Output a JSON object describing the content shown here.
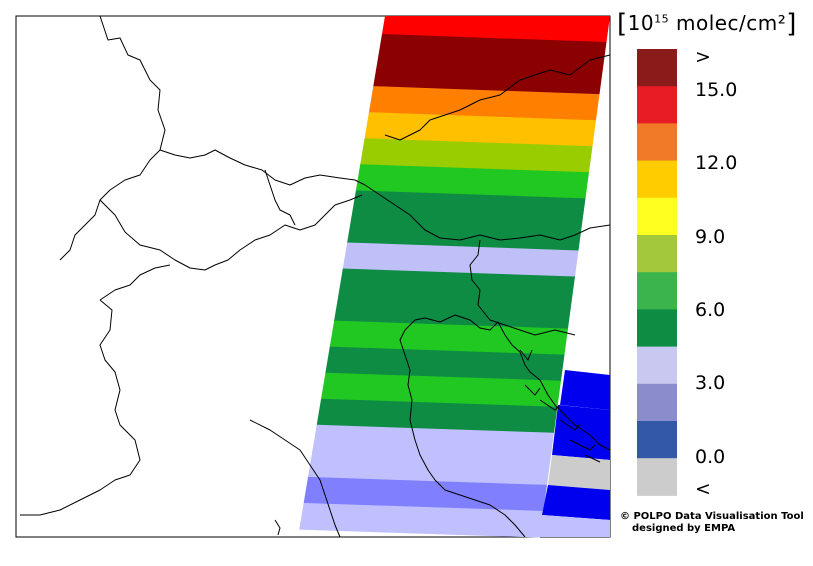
{
  "legend": {
    "unit_prefix": "10",
    "unit_exponent": "15",
    "unit_suffix": "molec/cm²",
    "bins": [
      {
        "label": ">",
        "color": "#8b0000"
      },
      {
        "label": "",
        "color": "#e81c24"
      },
      {
        "label": "15.0",
        "color": "#f08020"
      },
      {
        "label": "",
        "color": "#ffcc00"
      },
      {
        "label": "12.0",
        "color": "#ffff00"
      },
      {
        "label": "",
        "color": "#a8c832"
      },
      {
        "label": "9.0",
        "color": "#44b44c"
      },
      {
        "label": "",
        "color": "#0e8c44"
      },
      {
        "label": "6.0",
        "color": "#c8c8f0"
      },
      {
        "label": "",
        "color": "#8888cc"
      },
      {
        "label": "3.0",
        "color": "#3355a8"
      },
      {
        "label": "",
        "color": "#cccccc"
      },
      {
        "label": "0.0",
        "color": ""
      },
      {
        "label": "<",
        "color": ""
      }
    ],
    "tick_labels": [
      ">",
      "15.0",
      "12.0",
      "9.0",
      "6.0",
      "3.0",
      "0.0",
      "<"
    ]
  },
  "credits": {
    "line1": "© POLPO Data Visualisation Tool",
    "line2": "designed by EMPA"
  },
  "swath": {
    "stripes": [
      {
        "color": "#ff0000"
      },
      {
        "color": "#8b0000"
      },
      {
        "color": "#8b0000"
      },
      {
        "color": "#ff8000"
      },
      {
        "color": "#ffc000"
      },
      {
        "color": "#9acd00"
      },
      {
        "color": "#22c822"
      },
      {
        "color": "#0e8c44"
      },
      {
        "color": "#0e8c44"
      },
      {
        "color": "#c0c0f8"
      },
      {
        "color": "#0e8c44"
      },
      {
        "color": "#0e8c44"
      },
      {
        "color": "#22c822"
      },
      {
        "color": "#0e8c44"
      },
      {
        "color": "#22c822"
      },
      {
        "color": "#0e8c44"
      },
      {
        "color": "#c0c0ff"
      },
      {
        "color": "#c0c0ff"
      },
      {
        "color": "#8080ff"
      },
      {
        "color": "#c0c0ff"
      }
    ]
  }
}
